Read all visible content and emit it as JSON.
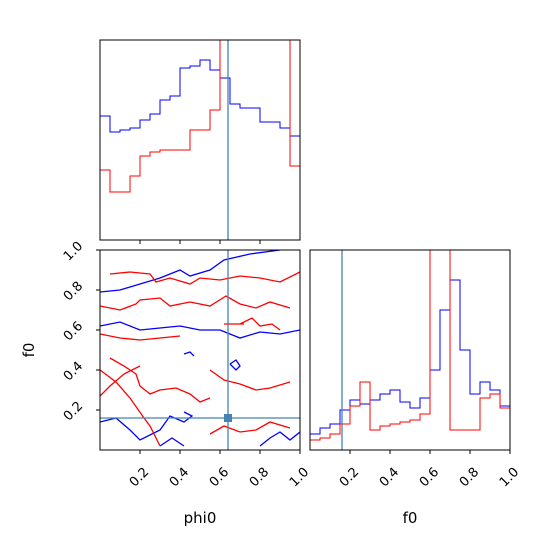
{
  "chart_data": {
    "type": "corner",
    "parameters": [
      "phi0",
      "f0"
    ],
    "truth": {
      "phi0": 0.64,
      "f0": 0.16
    },
    "truth_color": "#4682b4",
    "series": [
      {
        "color": "#0000ff"
      },
      {
        "color": "#ff0000"
      }
    ],
    "panels": [
      {
        "id": "hist-phi0",
        "type": "histogram-step",
        "xlim": [
          0.0,
          1.0
        ],
        "ylim": [
          0.0,
          1.0
        ],
        "bin_edges": [
          0.0,
          0.05,
          0.1,
          0.15,
          0.2,
          0.25,
          0.3,
          0.35,
          0.4,
          0.45,
          0.5,
          0.55,
          0.6,
          0.65,
          0.7,
          0.75,
          0.8,
          0.85,
          0.9,
          0.95,
          1.0
        ],
        "series_values": [
          [
            0.62,
            0.54,
            0.55,
            0.56,
            0.6,
            0.63,
            0.7,
            0.72,
            0.86,
            0.87,
            0.9,
            0.85,
            0.81,
            0.68,
            0.66,
            0.66,
            0.59,
            0.59,
            0.56,
            0.52
          ],
          [
            0.35,
            0.24,
            0.24,
            0.32,
            0.42,
            0.44,
            0.45,
            0.45,
            0.45,
            0.55,
            0.55,
            0.65,
            1.0,
            1.0,
            1.0,
            1.0,
            1.0,
            1.0,
            1.0,
            0.37
          ]
        ],
        "tick_positions": [
          0.2,
          0.4,
          0.6,
          0.8
        ]
      },
      {
        "id": "contour-phi0-f0",
        "type": "contour",
        "xlim": [
          0.0,
          1.0
        ],
        "ylim": [
          0.0,
          1.0
        ],
        "xlabel": "phi0",
        "ylabel": "f0",
        "x_ticks": [
          "0.2",
          "0.4",
          "0.6",
          "0.8",
          "1.0"
        ],
        "y_ticks": [
          "0.2",
          "0.4",
          "0.6",
          "0.8",
          "1.0"
        ],
        "truth_point": [
          0.64,
          0.16
        ],
        "series_paths": [
          [
            [
              [
                0.0,
                0.79
              ],
              [
                0.1,
                0.8
              ],
              [
                0.2,
                0.83
              ],
              [
                0.3,
                0.86
              ],
              [
                0.4,
                0.9
              ],
              [
                0.45,
                0.87
              ],
              [
                0.55,
                0.9
              ],
              [
                0.62,
                0.95
              ],
              [
                0.75,
                0.98
              ],
              [
                0.9,
                1.0
              ]
            ],
            [
              [
                0.0,
                0.62
              ],
              [
                0.1,
                0.64
              ],
              [
                0.2,
                0.6
              ],
              [
                0.3,
                0.61
              ],
              [
                0.4,
                0.62
              ],
              [
                0.5,
                0.6
              ],
              [
                0.6,
                0.6
              ],
              [
                0.7,
                0.56
              ],
              [
                0.8,
                0.59
              ],
              [
                0.9,
                0.58
              ],
              [
                1.0,
                0.6
              ]
            ],
            [
              [
                0.0,
                0.14
              ],
              [
                0.08,
                0.16
              ],
              [
                0.15,
                0.1
              ],
              [
                0.2,
                0.05
              ],
              [
                0.3,
                0.1
              ],
              [
                0.35,
                0.17
              ],
              [
                0.42,
                0.14
              ],
              [
                0.46,
                0.17
              ],
              [
                0.42,
                0.19
              ]
            ],
            [
              [
                0.65,
                0.43
              ],
              [
                0.68,
                0.45
              ],
              [
                0.7,
                0.42
              ],
              [
                0.68,
                0.4
              ],
              [
                0.65,
                0.43
              ]
            ],
            [
              [
                0.8,
                0.02
              ],
              [
                0.85,
                0.06
              ],
              [
                0.9,
                0.09
              ],
              [
                0.95,
                0.05
              ],
              [
                1.0,
                0.09
              ]
            ],
            [
              [
                0.42,
                0.48
              ],
              [
                0.45,
                0.49
              ],
              [
                0.47,
                0.47
              ]
            ],
            [
              [
                0.3,
                0.02
              ],
              [
                0.36,
                0.06
              ],
              [
                0.42,
                0.02
              ]
            ]
          ],
          [
            [
              [
                0.05,
                0.88
              ],
              [
                0.15,
                0.89
              ],
              [
                0.25,
                0.88
              ],
              [
                0.28,
                0.84
              ],
              [
                0.35,
                0.86
              ],
              [
                0.45,
                0.83
              ],
              [
                0.5,
                0.86
              ],
              [
                0.6,
                0.85
              ],
              [
                0.7,
                0.87
              ],
              [
                0.8,
                0.86
              ],
              [
                0.9,
                0.84
              ],
              [
                1.0,
                0.89
              ]
            ],
            [
              [
                0.0,
                0.72
              ],
              [
                0.1,
                0.7
              ],
              [
                0.18,
                0.73
              ],
              [
                0.2,
                0.75
              ],
              [
                0.3,
                0.76
              ],
              [
                0.35,
                0.72
              ],
              [
                0.45,
                0.74
              ],
              [
                0.55,
                0.72
              ],
              [
                0.63,
                0.77
              ],
              [
                0.7,
                0.73
              ],
              [
                0.78,
                0.71
              ],
              [
                0.85,
                0.74
              ],
              [
                0.95,
                0.71
              ]
            ],
            [
              [
                0.0,
                0.58
              ],
              [
                0.1,
                0.56
              ],
              [
                0.2,
                0.55
              ],
              [
                0.3,
                0.56
              ],
              [
                0.4,
                0.57
              ]
            ],
            [
              [
                0.05,
                0.46
              ],
              [
                0.12,
                0.42
              ],
              [
                0.18,
                0.38
              ],
              [
                0.2,
                0.32
              ],
              [
                0.25,
                0.28
              ],
              [
                0.3,
                0.3
              ],
              [
                0.38,
                0.31
              ],
              [
                0.45,
                0.28
              ],
              [
                0.5,
                0.24
              ],
              [
                0.55,
                0.26
              ]
            ],
            [
              [
                0.0,
                0.4
              ],
              [
                0.08,
                0.34
              ],
              [
                0.15,
                0.26
              ],
              [
                0.22,
                0.16
              ],
              [
                0.25,
                0.12
              ],
              [
                0.3,
                0.02
              ]
            ],
            [
              [
                0.0,
                0.27
              ],
              [
                0.05,
                0.32
              ],
              [
                0.12,
                0.38
              ],
              [
                0.2,
                0.42
              ]
            ],
            [
              [
                0.55,
                0.4
              ],
              [
                0.62,
                0.35
              ],
              [
                0.7,
                0.33
              ],
              [
                0.78,
                0.3
              ],
              [
                0.85,
                0.31
              ],
              [
                0.95,
                0.34
              ]
            ],
            [
              [
                0.55,
                0.08
              ],
              [
                0.62,
                0.12
              ],
              [
                0.7,
                0.09
              ],
              [
                0.78,
                0.1
              ],
              [
                0.85,
                0.14
              ],
              [
                0.95,
                0.11
              ]
            ],
            [
              [
                0.7,
                0.63
              ],
              [
                0.76,
                0.66
              ],
              [
                0.8,
                0.62
              ],
              [
                0.86,
                0.63
              ],
              [
                0.9,
                0.6
              ]
            ],
            [
              [
                0.62,
                0.63
              ],
              [
                0.72,
                0.63
              ]
            ]
          ]
        ]
      },
      {
        "id": "hist-f0",
        "type": "histogram-step",
        "xlim": [
          0.0,
          1.0
        ],
        "ylim": [
          0.0,
          1.0
        ],
        "xlabel": "f0",
        "x_ticks": [
          "0.2",
          "0.4",
          "0.6",
          "0.8",
          "1.0"
        ],
        "bin_edges": [
          0.0,
          0.05,
          0.1,
          0.15,
          0.2,
          0.25,
          0.3,
          0.35,
          0.4,
          0.45,
          0.5,
          0.55,
          0.6,
          0.65,
          0.7,
          0.75,
          0.8,
          0.85,
          0.9,
          0.95,
          1.0
        ],
        "series_values": [
          [
            0.08,
            0.11,
            0.13,
            0.2,
            0.25,
            0.23,
            0.25,
            0.28,
            0.3,
            0.24,
            0.21,
            0.26,
            0.4,
            0.7,
            0.85,
            0.5,
            0.28,
            0.34,
            0.3,
            0.22
          ],
          [
            0.05,
            0.06,
            0.08,
            0.13,
            0.22,
            0.34,
            0.1,
            0.12,
            0.13,
            0.14,
            0.15,
            0.18,
            1.0,
            1.0,
            0.1,
            0.1,
            0.1,
            0.26,
            0.28,
            0.21
          ]
        ]
      }
    ]
  }
}
